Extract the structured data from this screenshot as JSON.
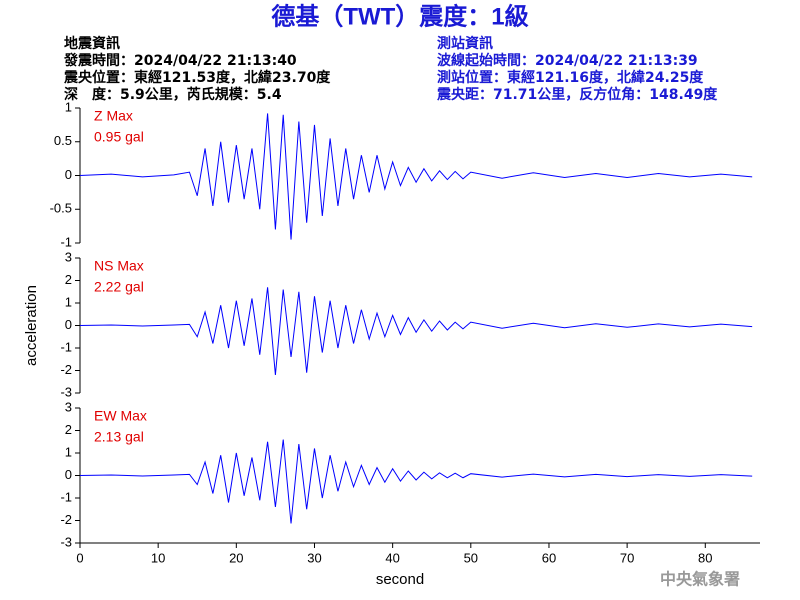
{
  "header": {
    "title": "德基（TWT）震度：1級",
    "left": [
      "地震資訊",
      "發震時間：2024/04/22 21:13:40",
      "震央位置：東經121.53度，北緯23.70度",
      "深　度：5.9公里，芮氏規模：5.4"
    ],
    "right": [
      "測站資訊",
      "波線起始時間：2024/04/22 21:13:39",
      "測站位置：東經121.16度，北緯24.25度",
      "震央距：71.71公里，反方位角：148.49度"
    ],
    "footer": "中央氣象署"
  },
  "chart_data": [
    {
      "type": "line",
      "label": "Z Max",
      "max_label": "0.95 gal",
      "color": "#0000ff",
      "xlim": [
        0,
        87
      ],
      "ylim": [
        -1,
        1
      ],
      "yticks": [
        1,
        0.5,
        0,
        -0.5,
        -1
      ],
      "x": [
        0,
        4,
        8,
        12,
        14,
        15,
        16,
        17,
        18,
        19,
        20,
        21,
        22,
        23,
        24,
        25,
        26,
        27,
        28,
        29,
        30,
        31,
        32,
        33,
        34,
        35,
        36,
        37,
        38,
        39,
        40,
        41,
        42,
        43,
        44,
        45,
        46,
        47,
        48,
        49,
        50,
        54,
        58,
        62,
        66,
        70,
        74,
        78,
        82,
        86
      ],
      "values": [
        0,
        0.02,
        -0.02,
        0.01,
        0.05,
        -0.3,
        0.4,
        -0.45,
        0.5,
        -0.4,
        0.45,
        -0.35,
        0.4,
        -0.5,
        0.92,
        -0.8,
        0.9,
        -0.95,
        0.8,
        -0.7,
        0.75,
        -0.6,
        0.55,
        -0.45,
        0.4,
        -0.35,
        0.3,
        -0.25,
        0.3,
        -0.2,
        0.2,
        -0.15,
        0.12,
        -0.1,
        0.1,
        -0.08,
        0.07,
        -0.06,
        0.06,
        -0.05,
        0.05,
        -0.04,
        0.04,
        -0.03,
        0.03,
        -0.03,
        0.03,
        -0.02,
        0.02,
        -0.02
      ]
    },
    {
      "type": "line",
      "label": "NS Max",
      "max_label": "2.22 gal",
      "color": "#0000ff",
      "ylabel": "acceleration",
      "xlim": [
        0,
        87
      ],
      "ylim": [
        -3,
        3
      ],
      "yticks": [
        3,
        2,
        1,
        0,
        -1,
        -2,
        -3
      ],
      "x": [
        0,
        4,
        8,
        12,
        14,
        15,
        16,
        17,
        18,
        19,
        20,
        21,
        22,
        23,
        24,
        25,
        26,
        27,
        28,
        29,
        30,
        31,
        32,
        33,
        34,
        35,
        36,
        37,
        38,
        39,
        40,
        41,
        42,
        43,
        44,
        45,
        46,
        47,
        48,
        49,
        50,
        54,
        58,
        62,
        66,
        70,
        74,
        78,
        82,
        86
      ],
      "values": [
        0,
        0.02,
        -0.02,
        0.02,
        0.05,
        -0.5,
        0.6,
        -0.8,
        0.9,
        -1.0,
        1.1,
        -0.9,
        1.2,
        -1.3,
        1.7,
        -2.2,
        1.6,
        -1.4,
        1.5,
        -2.1,
        1.3,
        -1.2,
        1.1,
        -1.0,
        0.9,
        -0.8,
        0.7,
        -0.6,
        0.55,
        -0.5,
        0.45,
        -0.4,
        0.35,
        -0.3,
        0.25,
        -0.25,
        0.2,
        -0.2,
        0.15,
        -0.15,
        0.15,
        -0.12,
        0.1,
        -0.1,
        0.08,
        -0.08,
        0.07,
        -0.06,
        0.06,
        -0.05
      ]
    },
    {
      "type": "line",
      "label": "EW Max",
      "max_label": "2.13 gal",
      "color": "#0000ff",
      "xlabel": "second",
      "xlim": [
        0,
        87
      ],
      "ylim": [
        -3,
        3
      ],
      "yticks": [
        3,
        2,
        1,
        0,
        -1,
        -2,
        -3
      ],
      "xticks": [
        0,
        10,
        20,
        30,
        40,
        50,
        60,
        70,
        80
      ],
      "x": [
        0,
        4,
        8,
        12,
        14,
        15,
        16,
        17,
        18,
        19,
        20,
        21,
        22,
        23,
        24,
        25,
        26,
        27,
        28,
        29,
        30,
        31,
        32,
        33,
        34,
        35,
        36,
        37,
        38,
        39,
        40,
        41,
        42,
        43,
        44,
        45,
        46,
        47,
        48,
        49,
        50,
        54,
        58,
        62,
        66,
        70,
        74,
        78,
        82,
        86
      ],
      "values": [
        0,
        0.02,
        -0.02,
        0.02,
        0.05,
        -0.4,
        0.6,
        -0.8,
        0.9,
        -1.2,
        1.0,
        -0.9,
        0.8,
        -1.1,
        1.5,
        -1.4,
        1.6,
        -2.13,
        1.4,
        -1.5,
        1.2,
        -1.0,
        0.9,
        -0.7,
        0.6,
        -0.5,
        0.45,
        -0.4,
        0.35,
        -0.3,
        0.3,
        -0.25,
        0.2,
        -0.2,
        0.15,
        -0.15,
        0.12,
        -0.1,
        0.1,
        -0.1,
        0.08,
        -0.07,
        0.06,
        -0.06,
        0.05,
        -0.05,
        0.04,
        -0.04,
        0.04,
        -0.03
      ]
    }
  ]
}
